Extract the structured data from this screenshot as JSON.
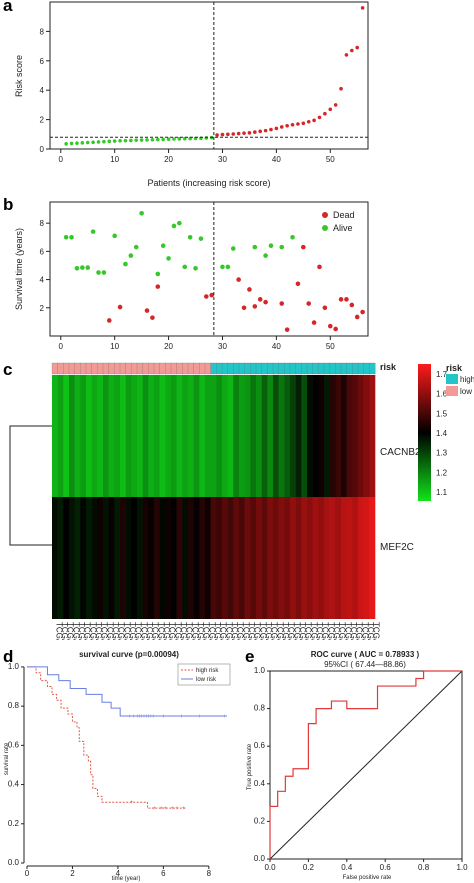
{
  "panel_letters": [
    "a",
    "b",
    "c",
    "d",
    "e"
  ],
  "colors": {
    "red": "#d62728",
    "green": "#36c82a",
    "heat_low": "#12e31a",
    "heat_mid": "#000000",
    "heat_high": "#ff1a1a",
    "risk_high": "#22c6c8",
    "risk_low": "#f29b96",
    "surv_high": "#e05a4a",
    "surv_low": "#6a7fe0",
    "roc": "#e03a3a"
  },
  "chart_data": [
    {
      "type": "scatter",
      "panel": "a",
      "xlabel": "Patients (increasing risk score)",
      "ylabel": "Risk score",
      "xlim": [
        -2,
        57
      ],
      "ylim": [
        0,
        10
      ],
      "xticks": [
        0,
        10,
        20,
        30,
        40,
        50
      ],
      "yticks": [
        0,
        2,
        4,
        6,
        8
      ],
      "cutoff_x": 28,
      "cutoff_y": 0.8,
      "values": [
        0.35,
        0.38,
        0.4,
        0.42,
        0.44,
        0.46,
        0.48,
        0.5,
        0.52,
        0.54,
        0.56,
        0.57,
        0.58,
        0.6,
        0.61,
        0.62,
        0.63,
        0.64,
        0.65,
        0.67,
        0.68,
        0.69,
        0.7,
        0.71,
        0.72,
        0.73,
        0.75,
        0.77,
        0.95,
        0.98,
        1.0,
        1.02,
        1.05,
        1.08,
        1.1,
        1.15,
        1.2,
        1.25,
        1.32,
        1.4,
        1.5,
        1.58,
        1.65,
        1.7,
        1.75,
        1.85,
        1.95,
        2.15,
        2.4,
        2.7,
        3.0,
        4.1,
        6.4,
        6.7,
        6.9,
        9.6
      ]
    },
    {
      "type": "scatter",
      "panel": "b",
      "ylabel": "Survival time (years)",
      "xlim": [
        -2,
        57
      ],
      "ylim": [
        0,
        9.5
      ],
      "xticks": [
        0,
        10,
        20,
        30,
        40,
        50
      ],
      "yticks": [
        2,
        4,
        6,
        8
      ],
      "cutoff_x": 28,
      "legend": [
        "Dead",
        "Alive"
      ],
      "alive": [
        [
          1,
          7.0
        ],
        [
          2,
          7.0
        ],
        [
          3,
          4.8
        ],
        [
          4,
          4.85
        ],
        [
          5,
          4.85
        ],
        [
          6,
          7.4
        ],
        [
          7,
          4.5
        ],
        [
          8,
          4.5
        ],
        [
          10,
          7.1
        ],
        [
          12,
          5.1
        ],
        [
          13,
          5.7
        ],
        [
          14,
          6.3
        ],
        [
          15,
          8.7
        ],
        [
          18,
          4.4
        ],
        [
          19,
          6.4
        ],
        [
          20,
          5.5
        ],
        [
          21,
          7.8
        ],
        [
          22,
          8.0
        ],
        [
          23,
          4.9
        ],
        [
          24,
          7.0
        ],
        [
          25,
          4.8
        ],
        [
          26,
          6.9
        ],
        [
          30,
          4.9
        ],
        [
          31,
          4.9
        ],
        [
          32,
          6.2
        ],
        [
          36,
          6.3
        ],
        [
          38,
          5.7
        ],
        [
          39,
          6.4
        ],
        [
          41,
          6.3
        ],
        [
          43,
          7.0
        ]
      ],
      "dead": [
        [
          9,
          1.1
        ],
        [
          11,
          2.05
        ],
        [
          16,
          1.8
        ],
        [
          17,
          1.3
        ],
        [
          18,
          3.5
        ],
        [
          27,
          2.8
        ],
        [
          28,
          2.9
        ],
        [
          33,
          4.0
        ],
        [
          34,
          2.0
        ],
        [
          35,
          3.3
        ],
        [
          36,
          2.1
        ],
        [
          37,
          2.6
        ],
        [
          38,
          2.4
        ],
        [
          41,
          2.3
        ],
        [
          42,
          0.45
        ],
        [
          44,
          3.7
        ],
        [
          45,
          6.3
        ],
        [
          46,
          2.3
        ],
        [
          47,
          0.95
        ],
        [
          48,
          4.9
        ],
        [
          49,
          2.0
        ],
        [
          50,
          0.7
        ],
        [
          51,
          0.5
        ],
        [
          52,
          2.6
        ],
        [
          53,
          2.6
        ],
        [
          54,
          2.2
        ],
        [
          55,
          1.35
        ],
        [
          56,
          1.7
        ]
      ]
    },
    {
      "type": "heatmap",
      "panel": "c",
      "rows": [
        "CACNB2",
        "MEF2C"
      ],
      "annotation_label": "risk",
      "legend_title": "risk",
      "legend_items": [
        "high",
        "low"
      ],
      "scale_ticks": [
        "1.7",
        "1.6",
        "1.5",
        "1.4",
        "1.3",
        "1.2",
        "1.1"
      ],
      "low_count": 28,
      "high_count": 29,
      "CACNB2": [
        1.12,
        1.15,
        1.1,
        1.18,
        1.13,
        1.16,
        1.11,
        1.14,
        1.12,
        1.17,
        1.13,
        1.15,
        1.11,
        1.16,
        1.14,
        1.12,
        1.18,
        1.13,
        1.15,
        1.11,
        1.14,
        1.16,
        1.12,
        1.15,
        1.13,
        1.17,
        1.12,
        1.15,
        1.15,
        1.18,
        1.14,
        1.12,
        1.2,
        1.16,
        1.17,
        1.22,
        1.18,
        1.25,
        1.19,
        1.28,
        1.22,
        1.26,
        1.3,
        1.35,
        1.28,
        1.38,
        1.4,
        1.42,
        1.36,
        1.45,
        1.48,
        1.44,
        1.5,
        1.52,
        1.55,
        1.58,
        1.62
      ],
      "MEF2C": [
        1.38,
        1.36,
        1.4,
        1.37,
        1.35,
        1.39,
        1.36,
        1.38,
        1.42,
        1.37,
        1.41,
        1.36,
        1.44,
        1.38,
        1.4,
        1.37,
        1.43,
        1.41,
        1.45,
        1.39,
        1.42,
        1.4,
        1.46,
        1.38,
        1.44,
        1.41,
        1.45,
        1.42,
        1.5,
        1.48,
        1.52,
        1.49,
        1.53,
        1.5,
        1.55,
        1.52,
        1.56,
        1.53,
        1.57,
        1.55,
        1.58,
        1.56,
        1.6,
        1.57,
        1.61,
        1.59,
        1.62,
        1.6,
        1.63,
        1.64,
        1.62,
        1.65,
        1.66,
        1.64,
        1.68,
        1.69,
        1.72
      ],
      "sample_labels": [
        "TCGA-BK-7715",
        "TCGA-AP-A051",
        "TCGA-AX-A1CI",
        "TCGA-AJ-A3I9",
        "TCGA-BK-A0C9",
        "TCGA-A5-A1OF",
        "TCGA-AJ-A3BF",
        "TCGA-AJ-A3EM",
        "TCGA-AX-A06L",
        "TCGA-D1-A17D",
        "TCGA-AP-A059",
        "TCGA-E6-A1LX",
        "TCGA-DF-A2KZ",
        "TCGA-EY-A1GU",
        "TCGA-AJ-A8CV",
        "TCGA-BK-A6W3",
        "TCGA-B5-A0JT",
        "TCGA-AP-A05O",
        "TCGA-BG-A0MO",
        "TCGA-D1-A16X",
        "TCGA-BK-A0CC",
        "TCGA-AX-A05Z",
        "TCGA-AP-A056",
        "TCGA-BG-A0W2",
        "TCGA-D1-A17F",
        "TCGA-BG-A220",
        "TCGA-AJ-A3NF",
        "TCGA-D1-A0ZN",
        "TCGA-EO-A22R",
        "TCGA-AX-A063",
        "TCGA-EY-A1GW",
        "TCGA-AP-A0LE",
        "TCGA-D1-A15W",
        "TCGA-BS-A0UF",
        "TCGA-AX-A2HC",
        "TCGA-D1-A163",
        "TCGA-AJ-A5DV",
        "TCGA-EY-A215",
        "TCGA-BG-A18B",
        "TCGA-AX-A3FX",
        "TCGA-AP-A1E0",
        "TCGA-D1-A176",
        "TCGA-EO-A3AU",
        "TCGA-BS-A0U8",
        "TCGA-AX-A1CE",
        "TCGA-AX-A3G8",
        "TCGA-AP-A1DK",
        "TCGA-B5-A11E",
        "TCGA-BK-A0CA",
        "TCGA-AP-A0LT",
        "TCGA-AP-A054",
        "TCGA-EY-A1G8",
        "TCGA-D1-A15V",
        "TCGA-AP-A05A",
        "TCGA-D1-A17H",
        "TCGA-B5-A0K4",
        "TCGA-BS-A0UV"
      ]
    },
    {
      "type": "line",
      "panel": "d",
      "title": "survival curve (p=0.00094)",
      "xlabel": "time (year)",
      "ylabel": "survival rate",
      "xlim": [
        0,
        8.8
      ],
      "ylim": [
        0,
        1.02
      ],
      "xticks": [
        0,
        2,
        4,
        6,
        8
      ],
      "yticks": [
        0.0,
        0.2,
        0.4,
        0.6,
        0.8,
        1.0
      ],
      "series": [
        {
          "name": "high risk",
          "steps": [
            [
              0,
              1.0
            ],
            [
              0.4,
              0.97
            ],
            [
              0.6,
              0.93
            ],
            [
              0.9,
              0.9
            ],
            [
              1.1,
              0.86
            ],
            [
              1.3,
              0.83
            ],
            [
              1.5,
              0.79
            ],
            [
              1.8,
              0.76
            ],
            [
              2.0,
              0.72
            ],
            [
              2.2,
              0.69
            ],
            [
              2.3,
              0.62
            ],
            [
              2.5,
              0.55
            ],
            [
              2.7,
              0.52
            ],
            [
              2.8,
              0.45
            ],
            [
              2.9,
              0.38
            ],
            [
              3.1,
              0.34
            ],
            [
              3.3,
              0.31
            ],
            [
              3.6,
              0.31
            ],
            [
              4.0,
              0.31
            ],
            [
              5.3,
              0.28
            ],
            [
              7.0,
              0.28
            ]
          ],
          "censor": [
            [
              4.6,
              0.31
            ],
            [
              5.6,
              0.28
            ],
            [
              5.9,
              0.28
            ],
            [
              6.1,
              0.28
            ],
            [
              6.4,
              0.28
            ],
            [
              6.6,
              0.28
            ],
            [
              6.9,
              0.28
            ]
          ]
        },
        {
          "name": "low risk",
          "steps": [
            [
              0,
              1.0
            ],
            [
              0.9,
              0.96
            ],
            [
              1.4,
              0.93
            ],
            [
              1.9,
              0.89
            ],
            [
              2.6,
              0.86
            ],
            [
              3.3,
              0.82
            ],
            [
              3.7,
              0.79
            ],
            [
              4.1,
              0.75
            ],
            [
              8.8,
              0.75
            ]
          ],
          "censor": [
            [
              4.5,
              0.75
            ],
            [
              4.7,
              0.75
            ],
            [
              4.85,
              0.75
            ],
            [
              4.95,
              0.75
            ],
            [
              5.05,
              0.75
            ],
            [
              5.15,
              0.75
            ],
            [
              5.25,
              0.75
            ],
            [
              5.35,
              0.75
            ],
            [
              5.45,
              0.75
            ],
            [
              5.55,
              0.75
            ],
            [
              6.0,
              0.75
            ],
            [
              6.8,
              0.75
            ],
            [
              7.6,
              0.75
            ],
            [
              8.7,
              0.75
            ]
          ]
        }
      ]
    },
    {
      "type": "line",
      "panel": "e",
      "title": "ROC curve ( AUC = 0.78933 )",
      "subtitle": "95%CI ( 67.44—88.86)",
      "xlabel": "False positive rate",
      "ylabel": "True positive rate",
      "xlim": [
        0,
        1
      ],
      "ylim": [
        0,
        1
      ],
      "xticks": [
        "0.0",
        "0.2",
        "0.4",
        "0.6",
        "0.8",
        "1.0"
      ],
      "yticks": [
        "0.0",
        "0.2",
        "0.4",
        "0.6",
        "0.8",
        "1.0"
      ],
      "points": [
        [
          0,
          0
        ],
        [
          0,
          0.08
        ],
        [
          0,
          0.16
        ],
        [
          0,
          0.28
        ],
        [
          0.04,
          0.28
        ],
        [
          0.04,
          0.36
        ],
        [
          0.08,
          0.36
        ],
        [
          0.08,
          0.44
        ],
        [
          0.12,
          0.44
        ],
        [
          0.12,
          0.48
        ],
        [
          0.2,
          0.48
        ],
        [
          0.2,
          0.72
        ],
        [
          0.24,
          0.72
        ],
        [
          0.24,
          0.8
        ],
        [
          0.32,
          0.8
        ],
        [
          0.32,
          0.84
        ],
        [
          0.4,
          0.84
        ],
        [
          0.4,
          0.8
        ],
        [
          0.56,
          0.8
        ],
        [
          0.56,
          0.92
        ],
        [
          0.76,
          0.92
        ],
        [
          0.76,
          0.96
        ],
        [
          0.8,
          0.96
        ],
        [
          0.8,
          1.0
        ],
        [
          1.0,
          1.0
        ]
      ]
    }
  ]
}
